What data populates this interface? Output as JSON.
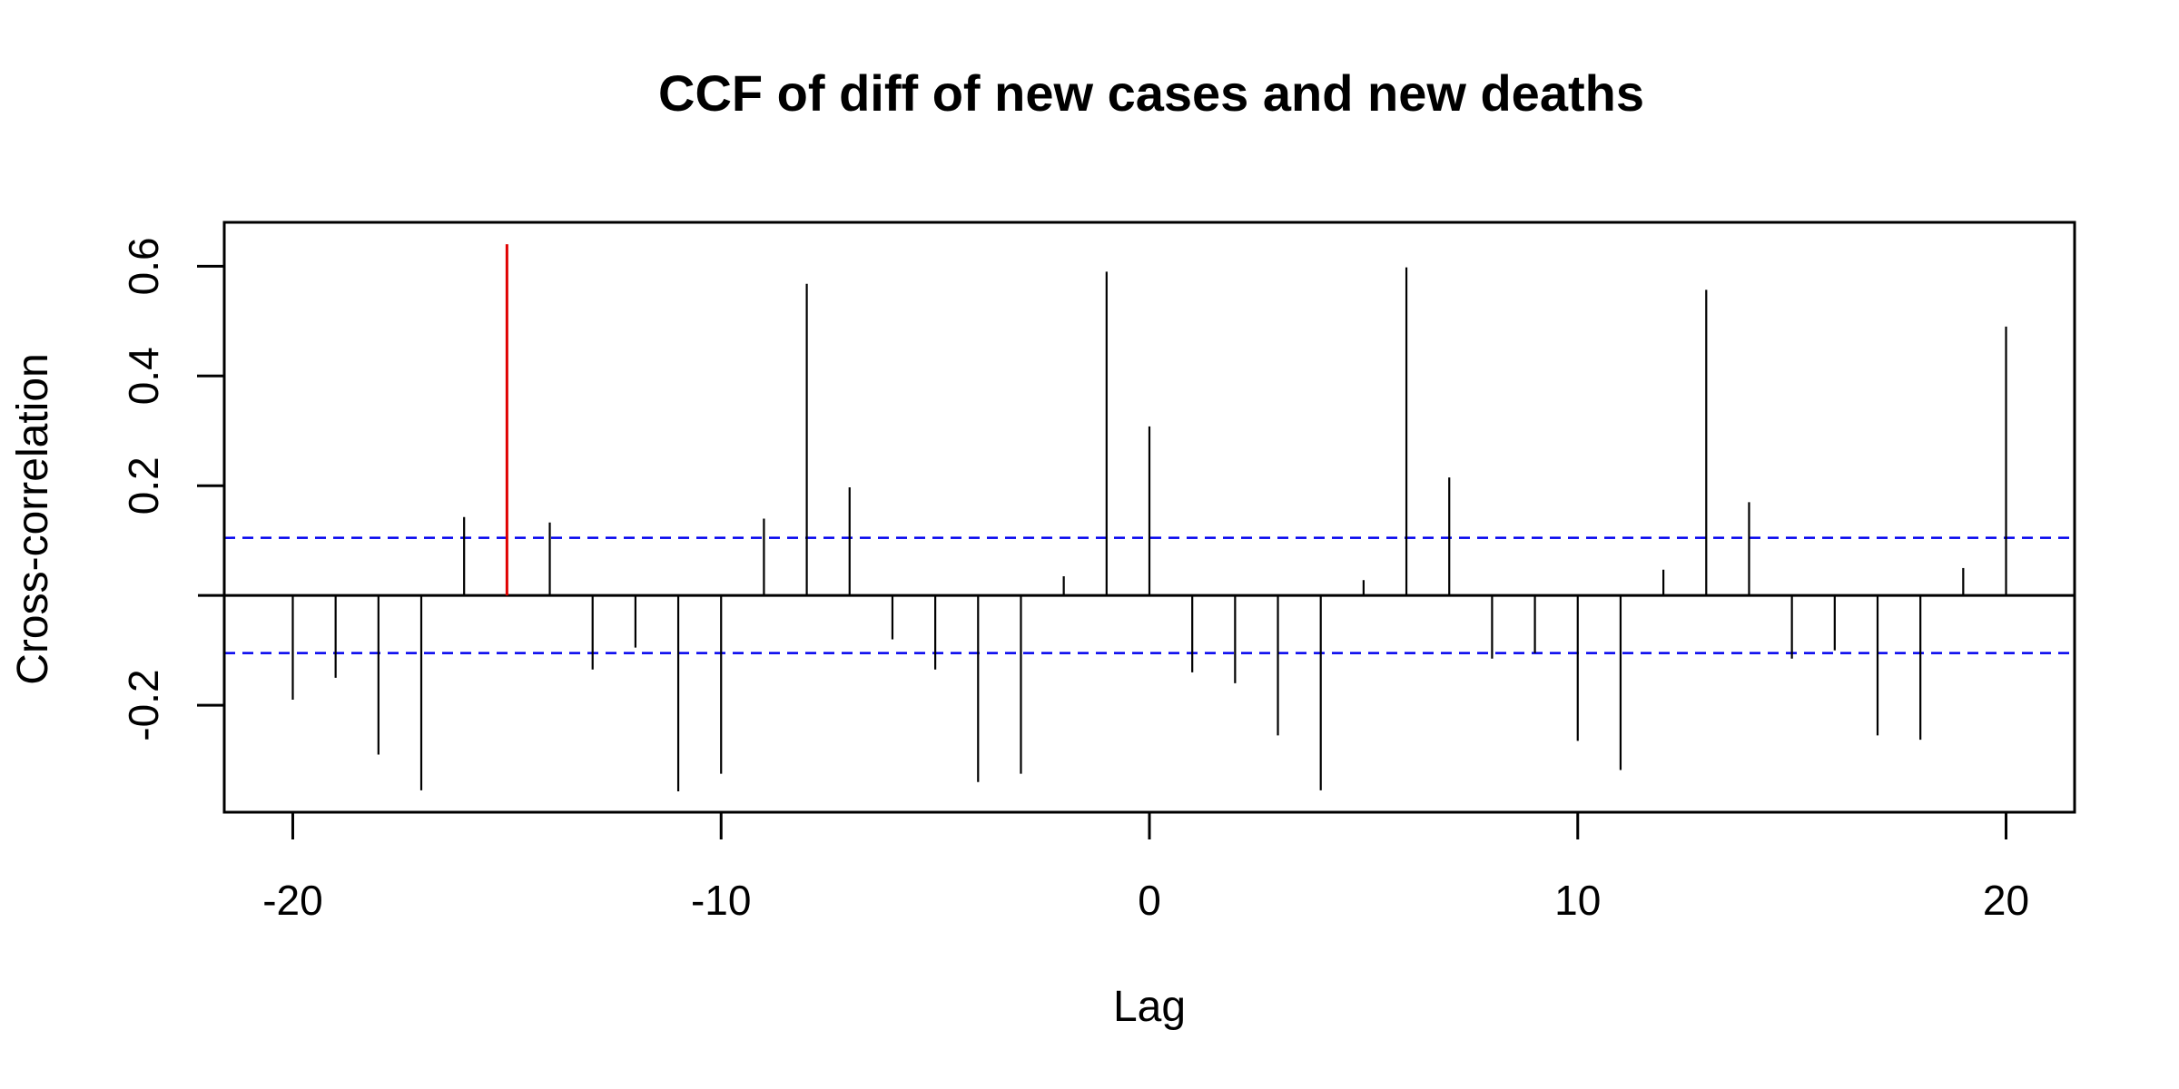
{
  "chart_data": {
    "type": "bar",
    "title": "CCF of diff of new cases and new deaths",
    "xlabel": "Lag",
    "ylabel": "Cross-correlation",
    "xlim": [
      -21.6,
      21.6
    ],
    "ylim": [
      -0.395,
      0.68
    ],
    "xticks": [
      -20,
      -10,
      0,
      10,
      20
    ],
    "yticks": [
      -0.2,
      0.2,
      0.4,
      0.6
    ],
    "xtick_labels": [
      "-20",
      "-10",
      "0",
      "10",
      "20"
    ],
    "ytick_labels": [
      "-0.2",
      "0.2",
      "0.4",
      "0.6"
    ],
    "confidence_bounds": [
      0.105,
      -0.105
    ],
    "highlight_lag": -15,
    "colors": {
      "bars": "#000000",
      "highlight": "#e00000",
      "bounds": "#0000ee",
      "zero_line": "#000000"
    },
    "lags": [
      -20,
      -19,
      -18,
      -17,
      -16,
      -15,
      -14,
      -13,
      -12,
      -11,
      -10,
      -9,
      -8,
      -7,
      -6,
      -5,
      -4,
      -3,
      -2,
      -1,
      0,
      1,
      2,
      3,
      4,
      5,
      6,
      7,
      8,
      9,
      10,
      11,
      12,
      13,
      14,
      15,
      16,
      17,
      18,
      19,
      20
    ],
    "values": [
      -0.19,
      -0.15,
      -0.29,
      -0.355,
      0.143,
      0.64,
      0.133,
      -0.135,
      -0.095,
      -0.357,
      -0.325,
      0.14,
      0.568,
      0.197,
      -0.08,
      -0.135,
      -0.34,
      -0.325,
      0.035,
      0.59,
      0.308,
      -0.14,
      -0.16,
      -0.255,
      -0.355,
      0.028,
      0.598,
      0.215,
      -0.115,
      -0.105,
      -0.265,
      -0.318,
      0.047,
      0.557,
      0.17,
      -0.115,
      -0.1,
      -0.255,
      -0.263,
      0.05,
      0.49
    ],
    "grid": false,
    "legend": "none"
  }
}
